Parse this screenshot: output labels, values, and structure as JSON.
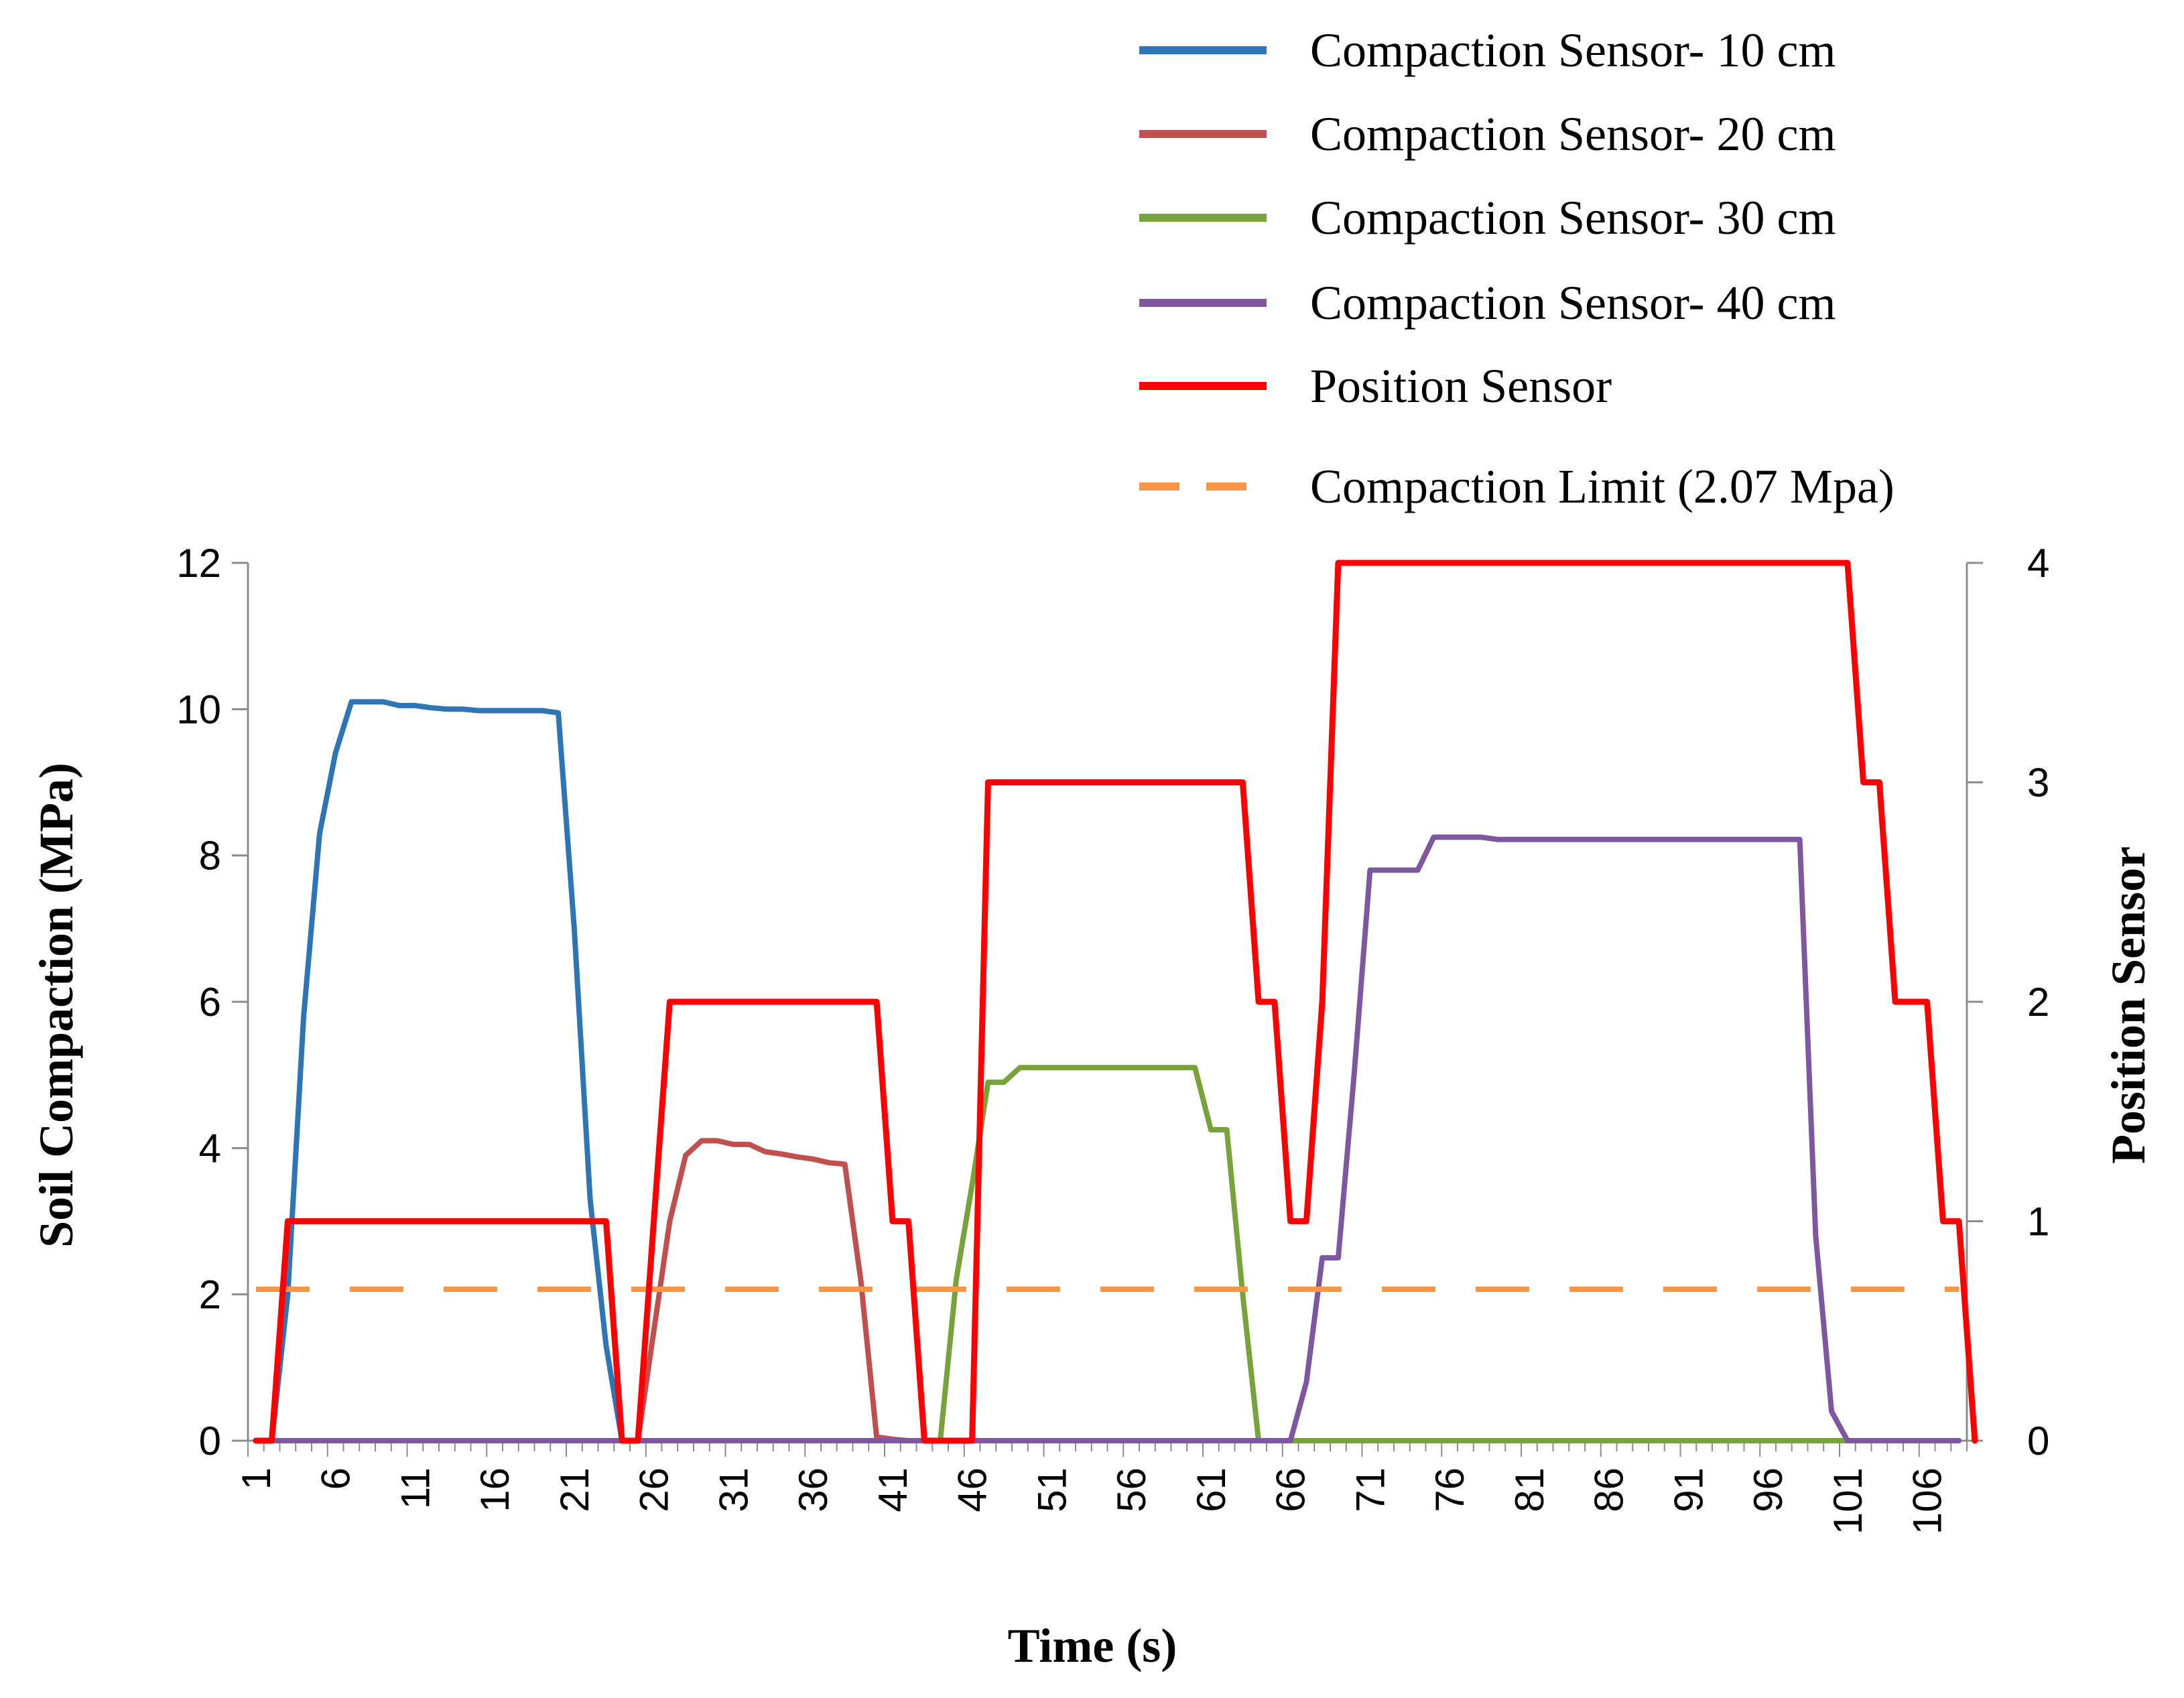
{
  "chart_data": {
    "type": "line",
    "title": "",
    "xlabel": "Time (s)",
    "ylabel": "Soil Compaction (MPa)",
    "y2label": "Position Sensor",
    "xlim": [
      1,
      108
    ],
    "ylim": [
      0,
      12
    ],
    "y2lim": [
      0,
      4
    ],
    "yticks": [
      "0",
      "2",
      "4",
      "6",
      "8",
      "10",
      "12"
    ],
    "y2ticks": [
      "0",
      "1",
      "2",
      "3",
      "4"
    ],
    "xtick_labels": [
      "1",
      "6",
      "11",
      "16",
      "21",
      "26",
      "31",
      "36",
      "41",
      "46",
      "51",
      "56",
      "61",
      "66",
      "71",
      "76",
      "81",
      "86",
      "91",
      "96",
      "101",
      "106"
    ],
    "grid": false,
    "legend_position": "top-right",
    "series": [
      {
        "name": "Compaction Sensor- 10 cm",
        "axis": "left",
        "color": "#2E75B6",
        "points": [
          [
            1,
            0
          ],
          [
            2,
            0
          ],
          [
            3,
            2
          ],
          [
            4,
            5.8
          ],
          [
            5,
            8.3
          ],
          [
            6,
            9.4
          ],
          [
            7,
            10.1
          ],
          [
            8,
            10.1
          ],
          [
            9,
            10.1
          ],
          [
            10,
            10.05
          ],
          [
            11,
            10.05
          ],
          [
            12,
            10.02
          ],
          [
            13,
            10
          ],
          [
            14,
            10
          ],
          [
            15,
            9.98
          ],
          [
            16,
            9.98
          ],
          [
            17,
            9.98
          ],
          [
            18,
            9.98
          ],
          [
            19,
            9.98
          ],
          [
            20,
            9.95
          ],
          [
            21,
            7
          ],
          [
            22,
            3.3
          ],
          [
            23,
            1.3
          ],
          [
            24,
            0
          ],
          [
            25,
            0
          ],
          [
            26,
            0
          ],
          [
            108,
            0
          ]
        ]
      },
      {
        "name": "Compaction Sensor- 20 cm",
        "axis": "left",
        "color": "#C0504D",
        "points": [
          [
            1,
            0
          ],
          [
            24,
            0
          ],
          [
            25,
            0
          ],
          [
            26,
            1.5
          ],
          [
            27,
            3.0
          ],
          [
            28,
            3.9
          ],
          [
            29,
            4.1
          ],
          [
            30,
            4.1
          ],
          [
            31,
            4.05
          ],
          [
            32,
            4.05
          ],
          [
            33,
            3.95
          ],
          [
            34,
            3.92
          ],
          [
            35,
            3.88
          ],
          [
            36,
            3.85
          ],
          [
            37,
            3.8
          ],
          [
            38,
            3.78
          ],
          [
            39,
            2.2
          ],
          [
            40,
            0.05
          ],
          [
            41,
            0.02
          ],
          [
            42,
            0
          ],
          [
            108,
            0
          ]
        ]
      },
      {
        "name": "Compaction Sensor- 30 cm",
        "axis": "left",
        "color": "#77A33A",
        "points": [
          [
            1,
            0
          ],
          [
            44,
            0
          ],
          [
            45,
            2.2
          ],
          [
            46,
            3.5
          ],
          [
            47,
            4.9
          ],
          [
            48,
            4.9
          ],
          [
            49,
            5.1
          ],
          [
            50,
            5.1
          ],
          [
            51,
            5.1
          ],
          [
            52,
            5.1
          ],
          [
            53,
            5.1
          ],
          [
            54,
            5.1
          ],
          [
            55,
            5.1
          ],
          [
            56,
            5.1
          ],
          [
            57,
            5.1
          ],
          [
            58,
            5.1
          ],
          [
            59,
            5.1
          ],
          [
            60,
            5.1
          ],
          [
            61,
            4.25
          ],
          [
            62,
            4.25
          ],
          [
            63,
            2.0
          ],
          [
            64,
            0
          ],
          [
            65,
            0
          ],
          [
            108,
            0
          ]
        ]
      },
      {
        "name": "Compaction Sensor- 40 cm",
        "axis": "left",
        "color": "#7E57A0",
        "points": [
          [
            1,
            0
          ],
          [
            65,
            0
          ],
          [
            66,
            0
          ],
          [
            67,
            0.8
          ],
          [
            68,
            2.5
          ],
          [
            69,
            2.5
          ],
          [
            70,
            5.0
          ],
          [
            71,
            7.8
          ],
          [
            72,
            7.8
          ],
          [
            73,
            7.8
          ],
          [
            74,
            7.8
          ],
          [
            75,
            8.25
          ],
          [
            76,
            8.25
          ],
          [
            77,
            8.25
          ],
          [
            78,
            8.25
          ],
          [
            79,
            8.22
          ],
          [
            80,
            8.22
          ],
          [
            81,
            8.22
          ],
          [
            85,
            8.22
          ],
          [
            90,
            8.22
          ],
          [
            95,
            8.22
          ],
          [
            98,
            8.22
          ],
          [
            99,
            2.8
          ],
          [
            100,
            0.4
          ],
          [
            101,
            0
          ],
          [
            108,
            0
          ]
        ]
      },
      {
        "name": "Position Sensor",
        "axis": "right",
        "color": "#FF0000",
        "points": [
          [
            1,
            0
          ],
          [
            2,
            0
          ],
          [
            3,
            1
          ],
          [
            4,
            1
          ],
          [
            22,
            1
          ],
          [
            23,
            1
          ],
          [
            24,
            0
          ],
          [
            25,
            0
          ],
          [
            26,
            1
          ],
          [
            27,
            2
          ],
          [
            39,
            2
          ],
          [
            40,
            2
          ],
          [
            41,
            1
          ],
          [
            42,
            1
          ],
          [
            43,
            0
          ],
          [
            44,
            0
          ],
          [
            45,
            0
          ],
          [
            46,
            0
          ],
          [
            47,
            3
          ],
          [
            48,
            3
          ],
          [
            62,
            3
          ],
          [
            63,
            3
          ],
          [
            64,
            2
          ],
          [
            65,
            2
          ],
          [
            66,
            1
          ],
          [
            67,
            1
          ],
          [
            68,
            2
          ],
          [
            69,
            4
          ],
          [
            70,
            4
          ],
          [
            100,
            4
          ],
          [
            101,
            4
          ],
          [
            102,
            3
          ],
          [
            103,
            3
          ],
          [
            104,
            2
          ],
          [
            105,
            2
          ],
          [
            106,
            2
          ],
          [
            107,
            1
          ],
          [
            108,
            1
          ],
          [
            109,
            0
          ]
        ]
      },
      {
        "name": "Compaction Limit (2.07 Mpa)",
        "axis": "left",
        "color": "#F79646",
        "dashed": true,
        "points": [
          [
            1,
            2.07
          ],
          [
            108,
            2.07
          ]
        ]
      }
    ]
  }
}
